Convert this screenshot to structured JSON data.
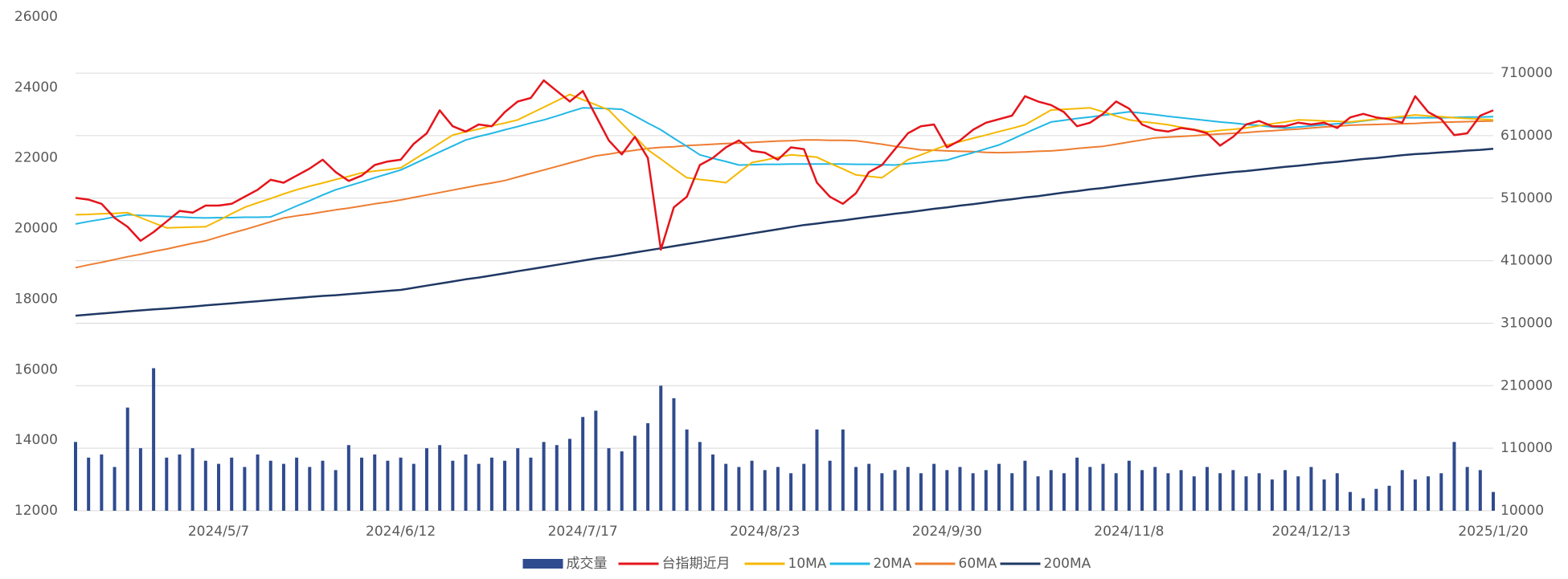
{
  "chart_data": {
    "type": "combo",
    "categories": [
      null,
      null,
      null,
      null,
      null,
      null,
      null,
      null,
      null,
      null,
      null,
      "2024/5/7",
      null,
      null,
      null,
      null,
      null,
      null,
      null,
      null,
      null,
      null,
      null,
      null,
      null,
      "2024/6/12",
      null,
      null,
      null,
      null,
      null,
      null,
      null,
      null,
      null,
      null,
      null,
      null,
      null,
      "2024/7/17",
      null,
      null,
      null,
      null,
      null,
      null,
      null,
      null,
      null,
      null,
      null,
      null,
      null,
      "2024/8/23",
      null,
      null,
      null,
      null,
      null,
      null,
      null,
      null,
      null,
      null,
      null,
      null,
      null,
      "2024/9/30",
      null,
      null,
      null,
      null,
      null,
      null,
      null,
      null,
      null,
      null,
      null,
      null,
      null,
      "2024/11/8",
      null,
      null,
      null,
      null,
      null,
      null,
      null,
      null,
      null,
      null,
      null,
      null,
      null,
      "2024/12/13",
      null,
      null,
      null,
      null,
      null,
      null,
      null,
      null,
      null,
      null,
      null,
      null,
      null,
      "2025/1/20"
    ],
    "ylim": [
      12000,
      26000
    ],
    "yticks": [
      12000,
      14000,
      16000,
      18000,
      20000,
      22000,
      24000,
      26000
    ],
    "y2lim": [
      10000,
      800000
    ],
    "y2ticks": [
      10000,
      110000,
      210000,
      310000,
      410000,
      510000,
      610000,
      710000
    ],
    "grid": true,
    "legend": "bottom",
    "series": [
      {
        "name": "成交量",
        "type": "bar",
        "axis": "y2",
        "color": "#2f4b8f",
        "values": [
          120000,
          95000,
          100000,
          80000,
          175000,
          110000,
          238000,
          95000,
          100000,
          110000,
          90000,
          85000,
          95000,
          80000,
          100000,
          90000,
          85000,
          95000,
          80000,
          90000,
          75000,
          115000,
          95000,
          100000,
          90000,
          95000,
          85000,
          110000,
          115000,
          90000,
          100000,
          85000,
          95000,
          90000,
          110000,
          95000,
          120000,
          115000,
          125000,
          160000,
          170000,
          110000,
          105000,
          130000,
          150000,
          210000,
          190000,
          140000,
          120000,
          100000,
          85000,
          80000,
          90000,
          75000,
          80000,
          70000,
          85000,
          140000,
          90000,
          140000,
          80000,
          85000,
          70000,
          75000,
          80000,
          70000,
          85000,
          75000,
          80000,
          70000,
          75000,
          85000,
          70000,
          90000,
          65000,
          75000,
          70000,
          95000,
          80000,
          85000,
          70000,
          90000,
          75000,
          80000,
          70000,
          75000,
          65000,
          80000,
          70000,
          75000,
          65000,
          70000,
          60000,
          75000,
          65000,
          80000,
          60000,
          70000,
          40000,
          30000,
          45000,
          50000,
          75000,
          60000,
          65000,
          70000,
          120000,
          80000,
          75000,
          40000
        ]
      },
      {
        "name": "台指期近月",
        "type": "line",
        "color": "#e5141b",
        "width": 2.5,
        "values": [
          20870,
          20820,
          20700,
          20300,
          20050,
          19650,
          19900,
          20200,
          20500,
          20450,
          20650,
          20650,
          20700,
          20900,
          21100,
          21380,
          21300,
          21500,
          21700,
          21950,
          21600,
          21350,
          21500,
          21800,
          21900,
          21950,
          22400,
          22700,
          23350,
          22900,
          22750,
          22950,
          22900,
          23300,
          23600,
          23700,
          24200,
          23900,
          23600,
          23900,
          23200,
          22500,
          22100,
          22600,
          22000,
          19400,
          20600,
          20900,
          21800,
          22000,
          22300,
          22500,
          22200,
          22150,
          21950,
          22300,
          22250,
          21300,
          20900,
          20700,
          21000,
          21600,
          21800,
          22250,
          22700,
          22900,
          22950,
          22300,
          22500,
          22800,
          23000,
          23100,
          23200,
          23750,
          23600,
          23500,
          23300,
          22900,
          23000,
          23250,
          23600,
          23400,
          22950,
          22800,
          22750,
          22850,
          22800,
          22700,
          22350,
          22600,
          22950,
          23050,
          22900,
          22900,
          23000,
          22950,
          23000,
          22850,
          23150,
          23250,
          23150,
          23100,
          23000,
          23750,
          23300,
          23100,
          22650,
          22700,
          23200,
          23350
        ]
      },
      {
        "name": "10MA",
        "type": "line",
        "color": "#f5b800",
        "width": 2,
        "values": [
          20390,
          20400,
          20420,
          20430,
          20450,
          20310,
          20160,
          20020,
          20030,
          20040,
          20050,
          20230,
          20420,
          20600,
          20730,
          20850,
          20980,
          21100,
          21200,
          21290,
          21390,
          21480,
          21580,
          21630,
          21670,
          21720,
          21950,
          22180,
          22420,
          22650,
          22740,
          22820,
          22910,
          22990,
          23080,
          23260,
          23440,
          23620,
          23800,
          23650,
          23510,
          23360,
          22980,
          22610,
          22230,
          21970,
          21700,
          21440,
          21390,
          21350,
          21300,
          21590,
          21870,
          21940,
          22020,
          22090,
          22060,
          22020,
          21850,
          21690,
          21520,
          21480,
          21440,
          21700,
          21950,
          22090,
          22230,
          22370,
          22460,
          22560,
          22650,
          22750,
          22840,
          22940,
          23150,
          23360,
          23380,
          23400,
          23420,
          23310,
          23190,
          23080,
          23030,
          22990,
          22940,
          22870,
          22810,
          22740,
          22780,
          22810,
          22850,
          22910,
          22970,
          23020,
          23080,
          23070,
          23050,
          23040,
          23020,
          23060,
          23100,
          23140,
          23180,
          23220,
          23190,
          23170,
          23140,
          23120,
          23100,
          23080
        ]
      },
      {
        "name": "20MA",
        "type": "line",
        "color": "#22b8e6",
        "width": 2,
        "values": [
          20130,
          20200,
          20260,
          20330,
          20390,
          20370,
          20360,
          20340,
          20330,
          20310,
          20300,
          20310,
          20310,
          20320,
          20320,
          20330,
          20480,
          20640,
          20790,
          20950,
          21100,
          21210,
          21320,
          21440,
          21550,
          21660,
          21830,
          22000,
          22170,
          22340,
          22510,
          22610,
          22700,
          22800,
          22890,
          22990,
          23080,
          23190,
          23310,
          23420,
          23410,
          23400,
          23380,
          23190,
          22990,
          22800,
          22560,
          22330,
          22090,
          21990,
          21900,
          21800,
          21810,
          21820,
          21820,
          21830,
          21830,
          21830,
          21830,
          21830,
          21820,
          21820,
          21810,
          21800,
          21840,
          21870,
          21910,
          21940,
          22050,
          22150,
          22260,
          22370,
          22530,
          22700,
          22860,
          23020,
          23070,
          23120,
          23160,
          23210,
          23260,
          23310,
          23270,
          23230,
          23180,
          23140,
          23100,
          23060,
          23020,
          22990,
          22950,
          22920,
          22880,
          22850,
          22880,
          22910,
          22940,
          22970,
          23000,
          23050,
          23090,
          23140,
          23140,
          23140,
          23140,
          23140,
          23150,
          23160,
          23160,
          23170
        ]
      },
      {
        "name": "60MA",
        "type": "line",
        "color": "#ee7d31",
        "width": 2,
        "values": [
          18890,
          18970,
          19040,
          19120,
          19200,
          19270,
          19350,
          19420,
          19500,
          19580,
          19650,
          19760,
          19870,
          19970,
          20080,
          20190,
          20300,
          20360,
          20410,
          20470,
          20530,
          20580,
          20640,
          20700,
          20750,
          20810,
          20880,
          20950,
          21020,
          21090,
          21160,
          21230,
          21290,
          21360,
          21460,
          21560,
          21660,
          21760,
          21860,
          21960,
          22060,
          22110,
          22170,
          22220,
          22270,
          22300,
          22320,
          22350,
          22370,
          22390,
          22410,
          22420,
          22440,
          22460,
          22480,
          22490,
          22510,
          22510,
          22500,
          22500,
          22490,
          22440,
          22390,
          22330,
          22280,
          22230,
          22220,
          22200,
          22190,
          22180,
          22160,
          22150,
          22160,
          22170,
          22190,
          22200,
          22230,
          22270,
          22300,
          22330,
          22390,
          22450,
          22510,
          22570,
          22590,
          22610,
          22630,
          22660,
          22680,
          22700,
          22720,
          22750,
          22770,
          22800,
          22820,
          22850,
          22880,
          22900,
          22930,
          22940,
          22950,
          22960,
          22970,
          22980,
          23000,
          23010,
          23020,
          23030,
          23040,
          23050
        ]
      },
      {
        "name": "200MA",
        "type": "line",
        "color": "#1f3864",
        "width": 2.5,
        "values": [
          17530,
          17560,
          17590,
          17620,
          17650,
          17680,
          17710,
          17730,
          17760,
          17790,
          17820,
          17850,
          17880,
          17910,
          17940,
          17970,
          18000,
          18030,
          18060,
          18090,
          18110,
          18140,
          18170,
          18200,
          18230,
          18260,
          18320,
          18380,
          18440,
          18500,
          18560,
          18610,
          18670,
          18730,
          18790,
          18850,
          18910,
          18970,
          19030,
          19090,
          19150,
          19200,
          19260,
          19320,
          19380,
          19440,
          19500,
          19560,
          19620,
          19680,
          19740,
          19800,
          19860,
          19920,
          19980,
          20040,
          20100,
          20140,
          20190,
          20230,
          20280,
          20330,
          20370,
          20420,
          20460,
          20510,
          20560,
          20600,
          20650,
          20690,
          20740,
          20790,
          20830,
          20880,
          20920,
          20970,
          21020,
          21060,
          21110,
          21150,
          21200,
          21250,
          21290,
          21340,
          21380,
          21430,
          21480,
          21520,
          21560,
          21600,
          21630,
          21670,
          21710,
          21750,
          21780,
          21820,
          21860,
          21890,
          21930,
          21970,
          22000,
          22040,
          22080,
          22110,
          22130,
          22160,
          22180,
          22210,
          22230,
          22260
        ]
      }
    ]
  }
}
